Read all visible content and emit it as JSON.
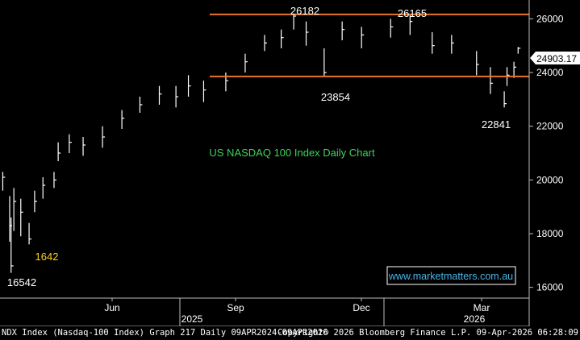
{
  "chart_data": {
    "type": "bar",
    "style": "ohlc",
    "title": "US NASDAQ 100 Index Daily Chart",
    "last_price_label": "24903.17",
    "watermark": "www.marketmatters.com.au",
    "ylim": [
      15600,
      26700
    ],
    "y_ticks": [
      16000,
      18000,
      20000,
      22000,
      24000,
      26000
    ],
    "x_month_labels": [
      "Jun",
      "Sep",
      "Dec",
      "Mar"
    ],
    "x_year_labels": [
      "2025",
      "2026"
    ],
    "horizontal_levels": [
      26165,
      23854
    ],
    "annotations": [
      "26182",
      "26165",
      "23854",
      "22841",
      "16542",
      "1642"
    ],
    "series": [
      {
        "x": [
          "2025-04-02",
          "2025-04-07",
          "2025-04-08",
          "2025-04-10",
          "2025-04-15",
          "2025-04-21",
          "2025-04-25",
          "2025-05-01",
          "2025-05-09",
          "2025-05-12",
          "2025-05-20",
          "2025-05-30",
          "2025-06-13",
          "2025-06-27",
          "2025-07-10",
          "2025-07-24",
          "2025-08-05",
          "2025-08-14",
          "2025-08-25",
          "2025-09-10",
          "2025-09-24",
          "2025-10-08",
          "2025-10-20",
          "2025-10-29",
          "2025-11-07",
          "2025-11-20",
          "2025-12-03",
          "2025-12-17",
          "2026-01-07",
          "2026-01-21",
          "2026-02-06",
          "2026-02-20",
          "2026-03-10",
          "2026-03-20",
          "2026-03-30",
          "2026-04-01",
          "2026-04-06",
          "2026-04-09"
        ],
        "values": [
          20100,
          18300,
          16800,
          19200,
          18800,
          17800,
          19200,
          19800,
          20000,
          21000,
          21400,
          21300,
          21600,
          22300,
          22800,
          23200,
          23100,
          23500,
          23350,
          23700,
          24400,
          25100,
          25300,
          26100,
          25500,
          24000,
          25600,
          25400,
          25700,
          25900,
          25000,
          25100,
          24300,
          23600,
          22841,
          23900,
          24200,
          24903
        ]
      }
    ],
    "highs": [
      20300,
      19400,
      18600,
      19700,
      19300,
      18400,
      19600,
      20100,
      20300,
      21400,
      21700,
      21600,
      22000,
      22600,
      23100,
      23500,
      23500,
      23900,
      23700,
      24000,
      24700,
      25400,
      25600,
      26182,
      25900,
      24900,
      25900,
      25700,
      26000,
      26165,
      25500,
      25400,
      24800,
      24200,
      23300,
      24200,
      24400,
      24950
    ],
    "lows": [
      19600,
      17700,
      16542,
      18100,
      17900,
      17600,
      18800,
      19300,
      19700,
      20700,
      21000,
      20900,
      21200,
      21900,
      22500,
      22800,
      22700,
      23100,
      22900,
      23300,
      24000,
      24800,
      24900,
      25600,
      25000,
      23854,
      25200,
      24900,
      25300,
      25400,
      24700,
      24700,
      23900,
      23200,
      22700,
      23500,
      23800,
      24700
    ]
  },
  "footer": {
    "left": "NDX Index (Nasdaq-100 Index) Graph 217 Daily 09APR2024-09APR2026",
    "right": "Copyright© 2026 Bloomberg Finance L.P.   09-Apr-2026 06:28:09"
  }
}
